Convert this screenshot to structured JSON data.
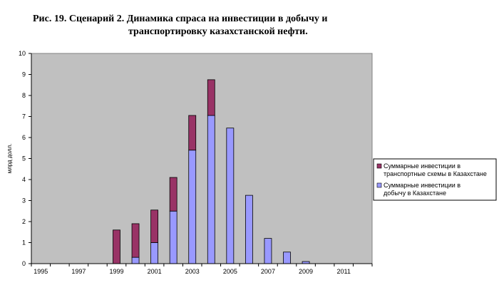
{
  "title": {
    "line1": "Рис. 19.  Сценарий 2. Динамика спраса на инвестиции в добычу и",
    "line2": "транспортировку казахстанской нефти."
  },
  "chart_data": {
    "type": "bar",
    "stacked": true,
    "title": "Рис. 19.  Сценарий 2. Динамика спраса на инвестиции в добычу и транспортировку казахстанской нефти.",
    "ylabel": "млрд долл.",
    "xlabel": "",
    "ylim": [
      0,
      10
    ],
    "yticks": [
      "0",
      "1",
      "2",
      "3",
      "4",
      "5",
      "6",
      "7",
      "8",
      "9",
      "10"
    ],
    "categories": [
      "1995",
      "1996",
      "1997",
      "1998",
      "1999",
      "2000",
      "2001",
      "2002",
      "2003",
      "2004",
      "2005",
      "2006",
      "2007",
      "2008",
      "2009",
      "2010",
      "2011",
      "2012"
    ],
    "xtick_labels": [
      "1995",
      "1997",
      "1999",
      "2001",
      "2003",
      "2005",
      "2007",
      "2009",
      "2011"
    ],
    "series": [
      {
        "name": "Суммарные инвестиции в добычу в Казахстане",
        "color": "#9999ff",
        "values": [
          0,
          0,
          0,
          0,
          0,
          0.3,
          1.0,
          2.5,
          5.4,
          7.05,
          6.45,
          3.25,
          1.2,
          0.55,
          0.1,
          0,
          0,
          0
        ]
      },
      {
        "name": "Суммарные инвестиции в транспортные схемы в Казахстане",
        "color": "#993366",
        "values": [
          0,
          0,
          0,
          0,
          1.6,
          1.6,
          1.55,
          1.6,
          1.65,
          1.7,
          0,
          0,
          0,
          0,
          0,
          0,
          0,
          0
        ]
      }
    ],
    "legend": {
      "placement": "right",
      "items": [
        {
          "label_lines": [
            "Суммарные инвестиции в",
            "транспортные схемы в  Казахстане"
          ],
          "color": "#993366"
        },
        {
          "label_lines": [
            "Суммарные инвестиции в",
            "добычу в Казахстане"
          ],
          "color": "#9999ff"
        }
      ]
    },
    "plot_background": "#c0c0c0",
    "grid": false
  }
}
